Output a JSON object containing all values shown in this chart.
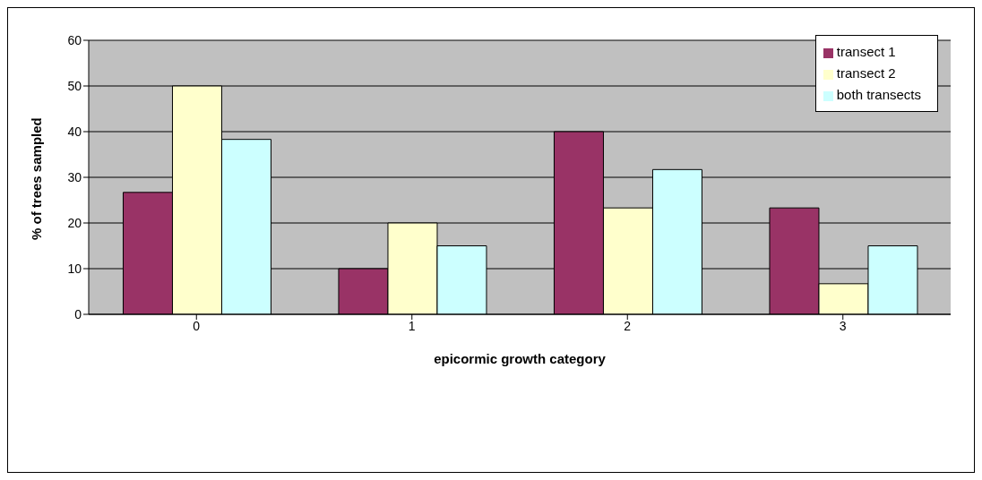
{
  "chart_data": {
    "type": "bar",
    "xlabel": "epicormic growth category",
    "ylabel": "% of trees sampled",
    "categories": [
      "0",
      "1",
      "2",
      "3"
    ],
    "series": [
      {
        "name": "transect 1",
        "color": "#993366",
        "values": [
          26.7,
          10,
          40,
          23.3
        ]
      },
      {
        "name": "transect 2",
        "color": "#ffffcc",
        "values": [
          50,
          20,
          23.3,
          6.7
        ]
      },
      {
        "name": "both transects",
        "color": "#ccffff",
        "values": [
          38.3,
          15,
          31.7,
          15
        ]
      }
    ],
    "ylim": [
      0,
      60
    ],
    "yticks": [
      0,
      10,
      20,
      30,
      40,
      50,
      60
    ],
    "grid": "y",
    "legend": "top right"
  }
}
